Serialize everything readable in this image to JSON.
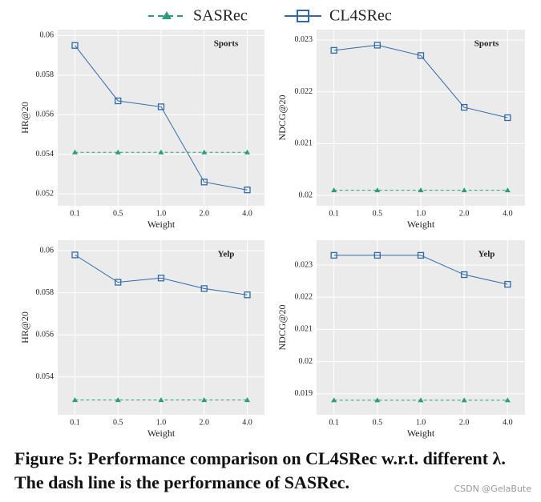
{
  "chart_data": [
    {
      "type": "line",
      "title": "Sports",
      "x_label": "Weight",
      "y_label": "HR@20",
      "categories": [
        "0.1",
        "0.5",
        "1.0",
        "2.0",
        "4.0"
      ],
      "series": [
        {
          "name": "SASRec",
          "color": "#2a9d7c",
          "linestyle": "dashed",
          "marker": "triangle",
          "values": [
            0.0541,
            0.0541,
            0.0541,
            0.0541,
            0.0541
          ]
        },
        {
          "name": "CL4SRec",
          "color": "#2f6aaa",
          "linestyle": "solid",
          "marker": "square",
          "values": [
            0.0595,
            0.0567,
            0.0564,
            0.0526,
            0.0522
          ]
        }
      ],
      "ylim": [
        0.0514,
        0.0603
      ],
      "yticks": [
        0.052,
        0.054,
        0.056,
        0.058,
        0.06
      ],
      "grid": true
    },
    {
      "type": "line",
      "title": "Sports",
      "x_label": "Weight",
      "y_label": "NDCG@20",
      "categories": [
        "0.1",
        "0.5",
        "1.0",
        "2.0",
        "4.0"
      ],
      "series": [
        {
          "name": "SASRec",
          "color": "#2a9d7c",
          "linestyle": "dashed",
          "marker": "triangle",
          "values": [
            0.0201,
            0.0201,
            0.0201,
            0.0201,
            0.0201
          ]
        },
        {
          "name": "CL4SRec",
          "color": "#2f6aaa",
          "linestyle": "solid",
          "marker": "square",
          "values": [
            0.0228,
            0.0229,
            0.0227,
            0.0217,
            0.0215
          ]
        }
      ],
      "ylim": [
        0.0198,
        0.0232
      ],
      "yticks": [
        0.02,
        0.021,
        0.022,
        0.023
      ],
      "grid": true
    },
    {
      "type": "line",
      "title": "Yelp",
      "x_label": "Weight",
      "y_label": "HR@20",
      "categories": [
        "0.1",
        "0.5",
        "1.0",
        "2.0",
        "4.0"
      ],
      "series": [
        {
          "name": "SASRec",
          "color": "#2a9d7c",
          "linestyle": "dashed",
          "marker": "triangle",
          "values": [
            0.0529,
            0.0529,
            0.0529,
            0.0529,
            0.0529
          ]
        },
        {
          "name": "CL4SRec",
          "color": "#2f6aaa",
          "linestyle": "solid",
          "marker": "square",
          "values": [
            0.0598,
            0.0585,
            0.0587,
            0.0582,
            0.0579
          ]
        }
      ],
      "ylim": [
        0.0522,
        0.0605
      ],
      "yticks": [
        0.054,
        0.056,
        0.058,
        0.06
      ],
      "grid": true
    },
    {
      "type": "line",
      "title": "Yelp",
      "x_label": "Weight",
      "y_label": "NDCG@20",
      "categories": [
        "0.1",
        "0.5",
        "1.0",
        "2.0",
        "4.0"
      ],
      "series": [
        {
          "name": "SASRec",
          "color": "#2a9d7c",
          "linestyle": "dashed",
          "marker": "triangle",
          "values": [
            0.0188,
            0.0188,
            0.0188,
            0.0188,
            0.0188
          ]
        },
        {
          "name": "CL4SRec",
          "color": "#2f6aaa",
          "linestyle": "solid",
          "marker": "square",
          "values": [
            0.0233,
            0.0233,
            0.0233,
            0.0227,
            0.0224
          ]
        }
      ],
      "ylim": [
        0.01835,
        0.02377
      ],
      "yticks": [
        0.019,
        0.02,
        0.021,
        0.022,
        0.023
      ],
      "grid": true
    }
  ],
  "caption": "Figure 5: Performance comparison on CL4SRec w.r.t. different λ. The dash line is the performance of SASRec.",
  "watermark": "CSDN @GelaBute"
}
